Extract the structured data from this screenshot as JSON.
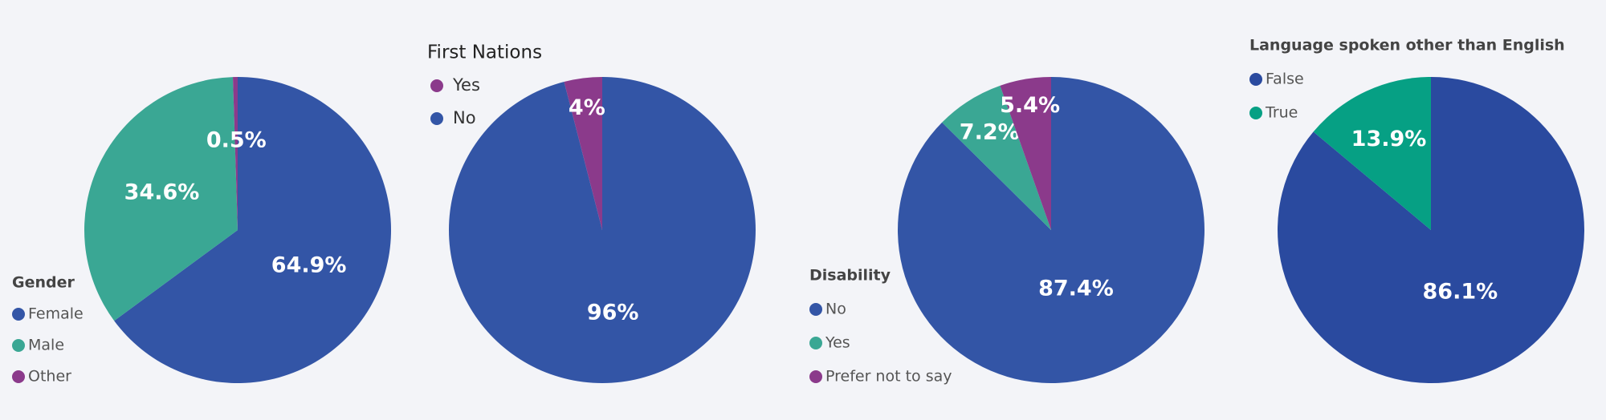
{
  "chart_data": [
    {
      "type": "pie",
      "legend_title": "Gender",
      "categories": [
        "Female",
        "Male",
        "Other"
      ],
      "values": [
        64.9,
        34.6,
        0.5
      ],
      "value_labels": [
        "64.9%",
        "34.6%",
        "0.5%"
      ],
      "colors": [
        "#3355a6",
        "#3aa794",
        "#8b3a8b"
      ]
    },
    {
      "type": "pie",
      "legend_title": "First Nations",
      "categories": [
        "No",
        "Yes"
      ],
      "values": [
        96,
        4
      ],
      "value_labels": [
        "96%",
        "4%"
      ],
      "colors": [
        "#3355a6",
        "#8b3a8b"
      ],
      "legend_order": [
        1,
        0
      ]
    },
    {
      "type": "pie",
      "legend_title": "Disability",
      "categories": [
        "No",
        "Yes",
        "Prefer not to say"
      ],
      "values": [
        87.4,
        7.2,
        5.4
      ],
      "value_labels": [
        "87.4%",
        "7.2%",
        "5.4%"
      ],
      "colors": [
        "#3355a6",
        "#3aa794",
        "#8b3a8b"
      ]
    },
    {
      "type": "pie",
      "legend_title": "Language spoken other than English",
      "categories": [
        "False",
        "True"
      ],
      "values": [
        86.1,
        13.9
      ],
      "value_labels": [
        "86.1%",
        "13.9%"
      ],
      "colors": [
        "#2a4a9f",
        "#06a084"
      ]
    }
  ]
}
